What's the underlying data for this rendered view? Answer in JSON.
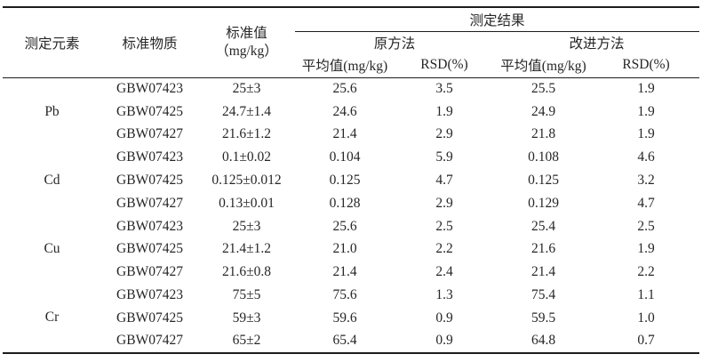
{
  "table": {
    "header": {
      "col_element": "测定元素",
      "col_material": "标准物质",
      "col_standard_line1": "标准值",
      "col_standard_line2": "（mg/kg）",
      "col_results": "测定结果",
      "col_original_method": "原方法",
      "col_improved_method": "改进方法",
      "col_mean": "平均值(mg/kg)",
      "col_rsd": "RSD(%)"
    },
    "groups": [
      {
        "element": "Pb",
        "rows": [
          {
            "material": "GBW07423",
            "standard": "25±3",
            "orig_mean": "25.6",
            "orig_rsd": "3.5",
            "impr_mean": "25.5",
            "impr_rsd": "1.9"
          },
          {
            "material": "GBW07425",
            "standard": "24.7±1.4",
            "orig_mean": "24.6",
            "orig_rsd": "1.9",
            "impr_mean": "24.9",
            "impr_rsd": "1.9"
          },
          {
            "material": "GBW07427",
            "standard": "21.6±1.2",
            "orig_mean": "21.4",
            "orig_rsd": "2.9",
            "impr_mean": "21.8",
            "impr_rsd": "1.9"
          }
        ]
      },
      {
        "element": "Cd",
        "rows": [
          {
            "material": "GBW07423",
            "standard": "0.1±0.02",
            "orig_mean": "0.104",
            "orig_rsd": "5.9",
            "impr_mean": "0.108",
            "impr_rsd": "4.6"
          },
          {
            "material": "GBW07425",
            "standard": "0.125±0.012",
            "orig_mean": "0.125",
            "orig_rsd": "4.7",
            "impr_mean": "0.125",
            "impr_rsd": "3.2"
          },
          {
            "material": "GBW07427",
            "standard": "0.13±0.01",
            "orig_mean": "0.128",
            "orig_rsd": "2.9",
            "impr_mean": "0.129",
            "impr_rsd": "4.7"
          }
        ]
      },
      {
        "element": "Cu",
        "rows": [
          {
            "material": "GBW07423",
            "standard": "25±3",
            "orig_mean": "25.6",
            "orig_rsd": "2.5",
            "impr_mean": "25.4",
            "impr_rsd": "2.5"
          },
          {
            "material": "GBW07425",
            "standard": "21.4±1.2",
            "orig_mean": "21.0",
            "orig_rsd": "2.2",
            "impr_mean": "21.6",
            "impr_rsd": "1.9"
          },
          {
            "material": "GBW07427",
            "standard": "21.6±0.8",
            "orig_mean": "21.4",
            "orig_rsd": "2.4",
            "impr_mean": "21.4",
            "impr_rsd": "2.2"
          }
        ]
      },
      {
        "element": "Cr",
        "rows": [
          {
            "material": "GBW07423",
            "standard": "75±5",
            "orig_mean": "75.6",
            "orig_rsd": "1.3",
            "impr_mean": "75.4",
            "impr_rsd": "1.1"
          },
          {
            "material": "GBW07425",
            "standard": "59±3",
            "orig_mean": "59.6",
            "orig_rsd": "0.9",
            "impr_mean": "59.5",
            "impr_rsd": "1.0"
          },
          {
            "material": "GBW07427",
            "standard": "65±2",
            "orig_mean": "65.4",
            "orig_rsd": "0.9",
            "impr_mean": "64.8",
            "impr_rsd": "0.7"
          }
        ]
      }
    ]
  }
}
